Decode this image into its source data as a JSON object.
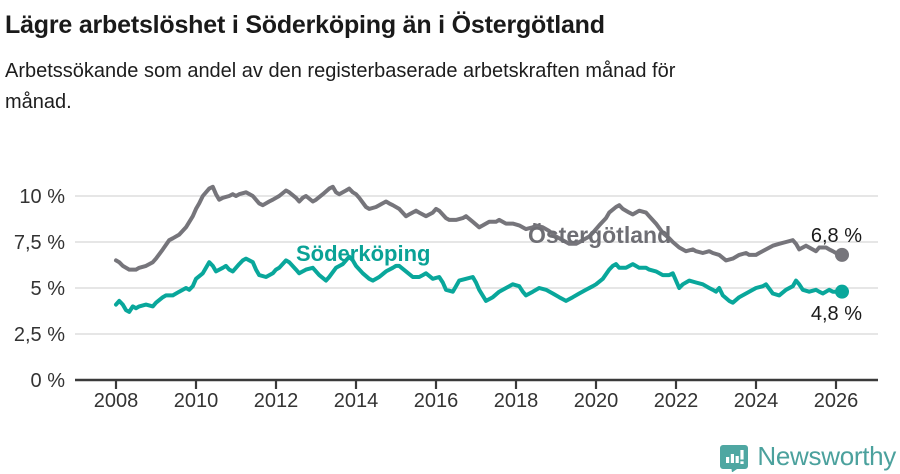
{
  "header": {
    "title": "Lägre arbetslöshet i Söderköping än i Östergötland",
    "subtitle": "Arbetssökande som andel av den registerbaserade arbetskraften månad för månad."
  },
  "chart_data": {
    "type": "line",
    "title": "Lägre arbetslöshet i Söderköping än i Östergötland",
    "xlabel": "",
    "ylabel": "",
    "x_unit": "year (monthly data)",
    "xlim": [
      2007.9,
      2027.05
    ],
    "ylim": [
      0,
      11.5
    ],
    "grid": true,
    "legend_position": "inline-labels",
    "x_ticks": [
      2008,
      2010,
      2012,
      2014,
      2016,
      2018,
      2020,
      2022,
      2024,
      2026
    ],
    "x_tick_labels": [
      "2008",
      "2010",
      "2012",
      "2014",
      "2016",
      "2018",
      "2020",
      "2022",
      "2024",
      "2026"
    ],
    "y_ticks": [
      {
        "value": 0,
        "label": "0 %"
      },
      {
        "value": 2.5,
        "label": "2,5 %"
      },
      {
        "value": 5,
        "label": "5 %"
      },
      {
        "value": 7.5,
        "label": "7,5 %"
      },
      {
        "value": 10,
        "label": "10 %"
      }
    ],
    "series": [
      {
        "name": "Östergötland",
        "color": "#76757B",
        "end_label": "6,8 %",
        "end_value": 6.8,
        "points": [
          [
            2008.0,
            6.5
          ],
          [
            2008.08,
            6.4
          ],
          [
            2008.17,
            6.2
          ],
          [
            2008.33,
            6.0
          ],
          [
            2008.5,
            6.0
          ],
          [
            2008.58,
            6.1
          ],
          [
            2008.75,
            6.2
          ],
          [
            2008.92,
            6.4
          ],
          [
            2009.0,
            6.6
          ],
          [
            2009.17,
            7.1
          ],
          [
            2009.33,
            7.6
          ],
          [
            2009.42,
            7.7
          ],
          [
            2009.58,
            7.9
          ],
          [
            2009.75,
            8.3
          ],
          [
            2009.92,
            8.9
          ],
          [
            2010.0,
            9.3
          ],
          [
            2010.08,
            9.6
          ],
          [
            2010.17,
            10.0
          ],
          [
            2010.33,
            10.4
          ],
          [
            2010.42,
            10.5
          ],
          [
            2010.5,
            10.1
          ],
          [
            2010.58,
            9.8
          ],
          [
            2010.67,
            9.9
          ],
          [
            2010.83,
            10.0
          ],
          [
            2010.92,
            10.1
          ],
          [
            2011.0,
            10.0
          ],
          [
            2011.08,
            10.1
          ],
          [
            2011.25,
            10.2
          ],
          [
            2011.42,
            10.0
          ],
          [
            2011.58,
            9.6
          ],
          [
            2011.67,
            9.5
          ],
          [
            2011.83,
            9.7
          ],
          [
            2011.92,
            9.8
          ],
          [
            2012.08,
            10.0
          ],
          [
            2012.25,
            10.3
          ],
          [
            2012.33,
            10.2
          ],
          [
            2012.5,
            9.9
          ],
          [
            2012.58,
            9.7
          ],
          [
            2012.67,
            9.9
          ],
          [
            2012.75,
            10.0
          ],
          [
            2012.92,
            9.7
          ],
          [
            2013.0,
            9.8
          ],
          [
            2013.17,
            10.1
          ],
          [
            2013.33,
            10.4
          ],
          [
            2013.42,
            10.5
          ],
          [
            2013.5,
            10.2
          ],
          [
            2013.58,
            10.1
          ],
          [
            2013.75,
            10.3
          ],
          [
            2013.83,
            10.4
          ],
          [
            2013.92,
            10.2
          ],
          [
            2014.0,
            10.1
          ],
          [
            2014.08,
            9.9
          ],
          [
            2014.25,
            9.4
          ],
          [
            2014.33,
            9.3
          ],
          [
            2014.5,
            9.4
          ],
          [
            2014.58,
            9.5
          ],
          [
            2014.75,
            9.7
          ],
          [
            2014.83,
            9.6
          ],
          [
            2014.92,
            9.5
          ],
          [
            2015.08,
            9.3
          ],
          [
            2015.25,
            8.9
          ],
          [
            2015.33,
            9.0
          ],
          [
            2015.5,
            9.2
          ],
          [
            2015.58,
            9.1
          ],
          [
            2015.75,
            8.9
          ],
          [
            2015.92,
            9.1
          ],
          [
            2016.0,
            9.3
          ],
          [
            2016.08,
            9.2
          ],
          [
            2016.25,
            8.8
          ],
          [
            2016.33,
            8.7
          ],
          [
            2016.5,
            8.7
          ],
          [
            2016.67,
            8.8
          ],
          [
            2016.75,
            8.9
          ],
          [
            2016.92,
            8.6
          ],
          [
            2017.08,
            8.3
          ],
          [
            2017.17,
            8.4
          ],
          [
            2017.33,
            8.6
          ],
          [
            2017.5,
            8.6
          ],
          [
            2017.58,
            8.7
          ],
          [
            2017.75,
            8.5
          ],
          [
            2017.92,
            8.5
          ],
          [
            2018.08,
            8.4
          ],
          [
            2018.25,
            8.2
          ],
          [
            2018.42,
            8.3
          ],
          [
            2018.5,
            8.4
          ],
          [
            2018.67,
            8.3
          ],
          [
            2018.83,
            8.1
          ],
          [
            2019.0,
            7.8
          ],
          [
            2019.17,
            7.6
          ],
          [
            2019.33,
            7.4
          ],
          [
            2019.5,
            7.4
          ],
          [
            2019.67,
            7.6
          ],
          [
            2019.83,
            7.8
          ],
          [
            2019.92,
            8.0
          ],
          [
            2020.08,
            8.4
          ],
          [
            2020.25,
            8.8
          ],
          [
            2020.33,
            9.1
          ],
          [
            2020.5,
            9.4
          ],
          [
            2020.58,
            9.5
          ],
          [
            2020.67,
            9.3
          ],
          [
            2020.83,
            9.1
          ],
          [
            2020.92,
            9.0
          ],
          [
            2021.08,
            9.2
          ],
          [
            2021.25,
            9.1
          ],
          [
            2021.33,
            8.9
          ],
          [
            2021.5,
            8.5
          ],
          [
            2021.67,
            8.0
          ],
          [
            2021.83,
            7.7
          ],
          [
            2021.92,
            7.5
          ],
          [
            2022.08,
            7.2
          ],
          [
            2022.25,
            7.0
          ],
          [
            2022.42,
            7.1
          ],
          [
            2022.5,
            7.0
          ],
          [
            2022.67,
            6.9
          ],
          [
            2022.83,
            7.0
          ],
          [
            2022.92,
            6.9
          ],
          [
            2023.08,
            6.8
          ],
          [
            2023.25,
            6.5
          ],
          [
            2023.42,
            6.6
          ],
          [
            2023.58,
            6.8
          ],
          [
            2023.75,
            6.9
          ],
          [
            2023.83,
            6.8
          ],
          [
            2024.0,
            6.8
          ],
          [
            2024.08,
            6.9
          ],
          [
            2024.25,
            7.1
          ],
          [
            2024.42,
            7.3
          ],
          [
            2024.58,
            7.4
          ],
          [
            2024.75,
            7.5
          ],
          [
            2024.92,
            7.6
          ],
          [
            2025.0,
            7.4
          ],
          [
            2025.08,
            7.1
          ],
          [
            2025.25,
            7.3
          ],
          [
            2025.33,
            7.2
          ],
          [
            2025.5,
            7.0
          ],
          [
            2025.58,
            7.2
          ],
          [
            2025.75,
            7.2
          ],
          [
            2025.83,
            7.1
          ],
          [
            2025.92,
            7.0
          ],
          [
            2026.08,
            6.8
          ],
          [
            2026.15,
            6.8
          ]
        ]
      },
      {
        "name": "Söderköping",
        "color": "#09A79B",
        "end_label": "4,8 %",
        "end_value": 4.8,
        "points": [
          [
            2008.0,
            4.1
          ],
          [
            2008.08,
            4.3
          ],
          [
            2008.17,
            4.1
          ],
          [
            2008.25,
            3.8
          ],
          [
            2008.33,
            3.7
          ],
          [
            2008.42,
            4.0
          ],
          [
            2008.5,
            3.9
          ],
          [
            2008.58,
            4.0
          ],
          [
            2008.75,
            4.1
          ],
          [
            2008.92,
            4.0
          ],
          [
            2009.0,
            4.2
          ],
          [
            2009.17,
            4.5
          ],
          [
            2009.25,
            4.6
          ],
          [
            2009.42,
            4.6
          ],
          [
            2009.58,
            4.8
          ],
          [
            2009.75,
            5.0
          ],
          [
            2009.83,
            4.9
          ],
          [
            2009.92,
            5.1
          ],
          [
            2010.0,
            5.5
          ],
          [
            2010.17,
            5.8
          ],
          [
            2010.25,
            6.1
          ],
          [
            2010.33,
            6.4
          ],
          [
            2010.42,
            6.2
          ],
          [
            2010.5,
            5.9
          ],
          [
            2010.67,
            6.1
          ],
          [
            2010.75,
            6.2
          ],
          [
            2010.83,
            6.0
          ],
          [
            2010.92,
            5.9
          ],
          [
            2011.08,
            6.3
          ],
          [
            2011.17,
            6.5
          ],
          [
            2011.25,
            6.6
          ],
          [
            2011.42,
            6.4
          ],
          [
            2011.5,
            6.0
          ],
          [
            2011.58,
            5.7
          ],
          [
            2011.75,
            5.6
          ],
          [
            2011.92,
            5.8
          ],
          [
            2012.0,
            6.0
          ],
          [
            2012.08,
            6.1
          ],
          [
            2012.25,
            6.5
          ],
          [
            2012.33,
            6.4
          ],
          [
            2012.5,
            6.0
          ],
          [
            2012.58,
            5.8
          ],
          [
            2012.75,
            6.0
          ],
          [
            2012.92,
            6.1
          ],
          [
            2013.08,
            5.7
          ],
          [
            2013.25,
            5.4
          ],
          [
            2013.33,
            5.6
          ],
          [
            2013.5,
            6.1
          ],
          [
            2013.67,
            6.3
          ],
          [
            2013.83,
            6.7
          ],
          [
            2013.92,
            6.5
          ],
          [
            2014.0,
            6.2
          ],
          [
            2014.17,
            5.8
          ],
          [
            2014.33,
            5.5
          ],
          [
            2014.42,
            5.4
          ],
          [
            2014.58,
            5.6
          ],
          [
            2014.75,
            5.9
          ],
          [
            2014.92,
            6.1
          ],
          [
            2015.0,
            6.2
          ],
          [
            2015.08,
            6.2
          ],
          [
            2015.25,
            5.9
          ],
          [
            2015.42,
            5.6
          ],
          [
            2015.58,
            5.6
          ],
          [
            2015.67,
            5.7
          ],
          [
            2015.75,
            5.8
          ],
          [
            2015.92,
            5.5
          ],
          [
            2016.08,
            5.6
          ],
          [
            2016.17,
            5.3
          ],
          [
            2016.25,
            4.9
          ],
          [
            2016.42,
            4.8
          ],
          [
            2016.5,
            5.1
          ],
          [
            2016.58,
            5.4
          ],
          [
            2016.75,
            5.5
          ],
          [
            2016.92,
            5.6
          ],
          [
            2017.0,
            5.3
          ],
          [
            2017.08,
            4.9
          ],
          [
            2017.25,
            4.3
          ],
          [
            2017.42,
            4.5
          ],
          [
            2017.58,
            4.8
          ],
          [
            2017.75,
            5.0
          ],
          [
            2017.92,
            5.2
          ],
          [
            2018.08,
            5.1
          ],
          [
            2018.17,
            4.8
          ],
          [
            2018.25,
            4.6
          ],
          [
            2018.42,
            4.8
          ],
          [
            2018.58,
            5.0
          ],
          [
            2018.75,
            4.9
          ],
          [
            2018.92,
            4.7
          ],
          [
            2019.08,
            4.5
          ],
          [
            2019.25,
            4.3
          ],
          [
            2019.42,
            4.5
          ],
          [
            2019.58,
            4.7
          ],
          [
            2019.75,
            4.9
          ],
          [
            2019.92,
            5.1
          ],
          [
            2020.0,
            5.2
          ],
          [
            2020.17,
            5.5
          ],
          [
            2020.33,
            6.0
          ],
          [
            2020.42,
            6.2
          ],
          [
            2020.5,
            6.3
          ],
          [
            2020.58,
            6.1
          ],
          [
            2020.75,
            6.1
          ],
          [
            2020.92,
            6.3
          ],
          [
            2021.08,
            6.1
          ],
          [
            2021.25,
            6.1
          ],
          [
            2021.33,
            6.0
          ],
          [
            2021.5,
            5.9
          ],
          [
            2021.67,
            5.7
          ],
          [
            2021.83,
            5.7
          ],
          [
            2021.92,
            5.8
          ],
          [
            2022.08,
            5.0
          ],
          [
            2022.17,
            5.2
          ],
          [
            2022.33,
            5.4
          ],
          [
            2022.5,
            5.3
          ],
          [
            2022.67,
            5.2
          ],
          [
            2022.83,
            5.0
          ],
          [
            2022.92,
            4.9
          ],
          [
            2023.0,
            4.8
          ],
          [
            2023.08,
            5.0
          ],
          [
            2023.17,
            4.6
          ],
          [
            2023.33,
            4.3
          ],
          [
            2023.42,
            4.2
          ],
          [
            2023.58,
            4.5
          ],
          [
            2023.75,
            4.7
          ],
          [
            2023.92,
            4.9
          ],
          [
            2024.0,
            5.0
          ],
          [
            2024.17,
            5.1
          ],
          [
            2024.25,
            5.2
          ],
          [
            2024.42,
            4.7
          ],
          [
            2024.58,
            4.6
          ],
          [
            2024.75,
            4.9
          ],
          [
            2024.92,
            5.1
          ],
          [
            2025.0,
            5.4
          ],
          [
            2025.08,
            5.2
          ],
          [
            2025.17,
            4.9
          ],
          [
            2025.33,
            4.8
          ],
          [
            2025.5,
            4.9
          ],
          [
            2025.58,
            4.8
          ],
          [
            2025.67,
            4.7
          ],
          [
            2025.83,
            4.9
          ],
          [
            2025.92,
            4.8
          ],
          [
            2026.08,
            4.8
          ],
          [
            2026.15,
            4.8
          ]
        ]
      }
    ]
  },
  "footer": {
    "brand": "Newsworthy"
  },
  "colors": {
    "ostergotland_line": "#76757B",
    "soderkoping_line": "#09A79B",
    "gridline": "#DDDDDD",
    "axis": "#3A3A3A",
    "tick_text": "#333333",
    "brand_teal": "#4FA7A2"
  }
}
